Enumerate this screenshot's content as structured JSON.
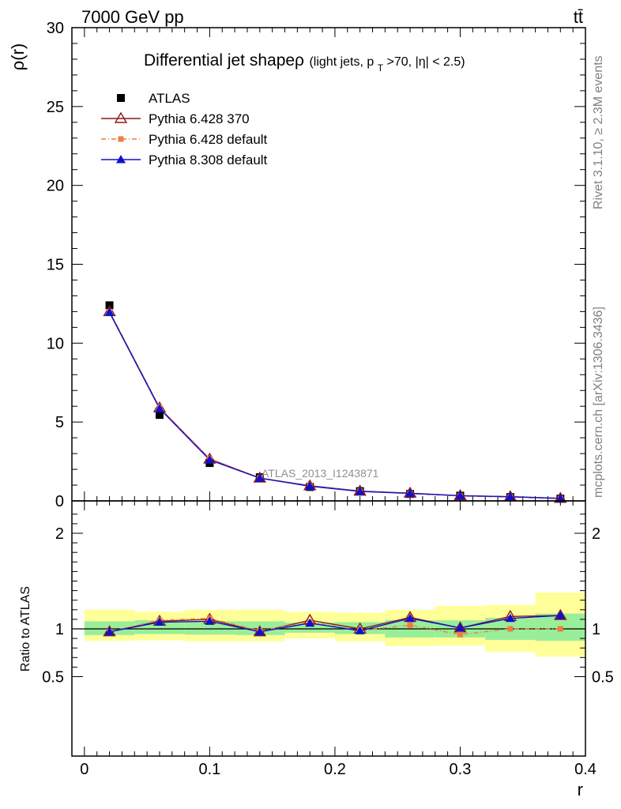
{
  "header": {
    "left": "7000 GeV pp",
    "right": "tt̄"
  },
  "side_labels": {
    "rivet": "Rivet 3.1.10, ≥ 2.3M events",
    "mcplots": "mcplots.cern.ch [arXiv:1306.3436]"
  },
  "chart_data": [
    {
      "type": "scatter",
      "title": "Differential jet shapeρ (light jets, pT>70, |η| < 2.5)",
      "title_main": "Differential jet shapeρ",
      "title_sub": "(light jets, p",
      "title_sub_T": "T",
      "title_sub_rest": ">70, |η| < 2.5)",
      "watermark": "ATLAS_2013_I1243871",
      "xlabel": "r",
      "ylabel": "ρ(r)",
      "xlim": [
        -0.01,
        0.4
      ],
      "ylim": [
        0,
        30
      ],
      "x_ticks": [
        "0",
        "0.1",
        "0.2",
        "0.3",
        "0.4"
      ],
      "y_ticks": [
        "0",
        "5",
        "10",
        "15",
        "20",
        "25",
        "30"
      ],
      "x": [
        0.02,
        0.06,
        0.1,
        0.14,
        0.18,
        0.22,
        0.26,
        0.3,
        0.34,
        0.38
      ],
      "legend_position": "top-left",
      "series": [
        {
          "name": "ATLAS",
          "marker": "square",
          "color": "#000000",
          "values": [
            12.4,
            5.45,
            2.4,
            1.5,
            0.88,
            0.62,
            0.44,
            0.33,
            0.24,
            0.14
          ]
        },
        {
          "name": "Pythia 6.428 370",
          "marker": "open-triangle",
          "color": "#8b1a1a",
          "values": [
            12.0,
            5.9,
            2.65,
            1.45,
            0.96,
            0.62,
            0.49,
            0.33,
            0.27,
            0.16
          ]
        },
        {
          "name": "Pythia 6.428 default",
          "marker": "small-square",
          "color": "#f07c3c",
          "dashed": true,
          "values": [
            12.0,
            5.92,
            2.68,
            1.46,
            0.94,
            0.61,
            0.46,
            0.31,
            0.24,
            0.14
          ]
        },
        {
          "name": "Pythia 8.308 default",
          "marker": "filled-triangle",
          "color": "#1010d0",
          "values": [
            11.95,
            5.85,
            2.6,
            1.44,
            0.93,
            0.6,
            0.48,
            0.33,
            0.26,
            0.16
          ]
        }
      ]
    },
    {
      "type": "scatter",
      "ylabel": "Ratio to ATLAS",
      "xlabel": "r",
      "ylim": [
        0.35,
        2.3
      ],
      "y_ticks": [
        "0.5",
        "1",
        "2"
      ],
      "x": [
        0.02,
        0.06,
        0.1,
        0.14,
        0.18,
        0.22,
        0.26,
        0.3,
        0.34,
        0.38
      ],
      "bands": {
        "green_lo": [
          0.935,
          0.945,
          0.94,
          0.935,
          0.96,
          0.945,
          0.91,
          0.91,
          0.885,
          0.875
        ],
        "green_hi": [
          1.08,
          1.09,
          1.08,
          1.08,
          1.065,
          1.07,
          1.09,
          1.09,
          1.115,
          1.16
        ],
        "yellow_lo": [
          0.875,
          0.88,
          0.87,
          0.87,
          0.9,
          0.87,
          0.82,
          0.825,
          0.76,
          0.71
        ],
        "yellow_hi": [
          1.2,
          1.18,
          1.2,
          1.2,
          1.18,
          1.17,
          1.2,
          1.24,
          1.25,
          1.38
        ]
      },
      "series": [
        {
          "name": "Pythia 6.428 370",
          "color": "#8b1a1a",
          "values": [
            0.97,
            1.08,
            1.1,
            0.97,
            1.09,
            1.0,
            1.12,
            1.01,
            1.13,
            1.14
          ]
        },
        {
          "name": "Pythia 6.428 default",
          "color": "#f07c3c",
          "values": [
            0.97,
            1.09,
            1.11,
            0.98,
            1.07,
            0.98,
            1.04,
            0.94,
            1.0,
            1.0
          ]
        },
        {
          "name": "Pythia 8.308 default",
          "color": "#1010d0",
          "values": [
            0.97,
            1.07,
            1.08,
            0.97,
            1.06,
            0.98,
            1.11,
            1.01,
            1.11,
            1.14
          ]
        }
      ]
    }
  ]
}
